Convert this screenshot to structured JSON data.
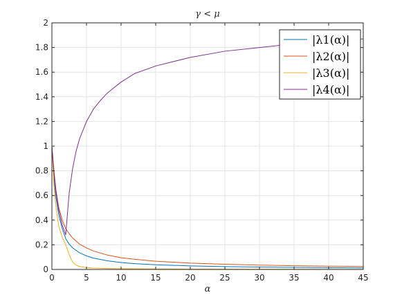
{
  "chart_data": {
    "type": "line",
    "title": "γ < μ",
    "xlabel": "α",
    "ylabel": "",
    "xlim": [
      0,
      45
    ],
    "ylim": [
      0,
      2
    ],
    "xticks": [
      0,
      5,
      10,
      15,
      20,
      25,
      30,
      35,
      40,
      45
    ],
    "yticks": [
      0,
      0.2,
      0.4,
      0.6,
      0.8,
      1,
      1.2,
      1.4,
      1.6,
      1.8,
      2
    ],
    "grid": true,
    "legend_position": "top-right",
    "series": [
      {
        "name": "|λ1(α)|",
        "color": "#0072BD",
        "x": [
          0,
          0.3,
          0.6,
          1,
          1.5,
          2,
          2.5,
          3,
          4,
          5,
          6,
          8,
          10,
          12,
          15,
          20,
          25,
          30,
          35,
          40,
          45
        ],
        "y": [
          1.0,
          0.74,
          0.58,
          0.44,
          0.33,
          0.25,
          0.205,
          0.175,
          0.135,
          0.11,
          0.092,
          0.07,
          0.056,
          0.047,
          0.038,
          0.029,
          0.023,
          0.019,
          0.017,
          0.015,
          0.013
        ]
      },
      {
        "name": "|λ2(α)|",
        "color": "#D95319",
        "x": [
          0,
          0.3,
          0.6,
          1,
          1.5,
          2,
          2.5,
          3,
          4,
          5,
          6,
          8,
          10,
          12,
          15,
          20,
          25,
          30,
          35,
          40,
          45
        ],
        "y": [
          1.0,
          0.8,
          0.64,
          0.5,
          0.4,
          0.33,
          0.29,
          0.255,
          0.205,
          0.175,
          0.15,
          0.117,
          0.095,
          0.082,
          0.067,
          0.051,
          0.042,
          0.035,
          0.03,
          0.027,
          0.024
        ]
      },
      {
        "name": "|λ3(α)|",
        "color": "#EDB120",
        "x": [
          0,
          0.3,
          0.6,
          1,
          1.5,
          2,
          2.5,
          3,
          3.5,
          4,
          5,
          6,
          8,
          10,
          15,
          20,
          30,
          45
        ],
        "y": [
          1.0,
          0.68,
          0.5,
          0.35,
          0.26,
          0.2,
          0.12,
          0.06,
          0.035,
          0.024,
          0.015,
          0.011,
          0.008,
          0.006,
          0.004,
          0.003,
          0.002,
          0.0015
        ]
      },
      {
        "name": "|λ4(α)|",
        "color": "#7E2F8E",
        "x": [
          0,
          0.3,
          0.6,
          1,
          1.5,
          2,
          2.2,
          2.5,
          3,
          3.5,
          4,
          5,
          6,
          7,
          8,
          10,
          12,
          15,
          20,
          25,
          30,
          35,
          40,
          45
        ],
        "y": [
          1.0,
          0.78,
          0.62,
          0.48,
          0.36,
          0.28,
          0.42,
          0.62,
          0.82,
          0.96,
          1.06,
          1.2,
          1.3,
          1.37,
          1.43,
          1.52,
          1.59,
          1.65,
          1.72,
          1.77,
          1.8,
          1.83,
          1.85,
          1.87
        ]
      }
    ]
  }
}
